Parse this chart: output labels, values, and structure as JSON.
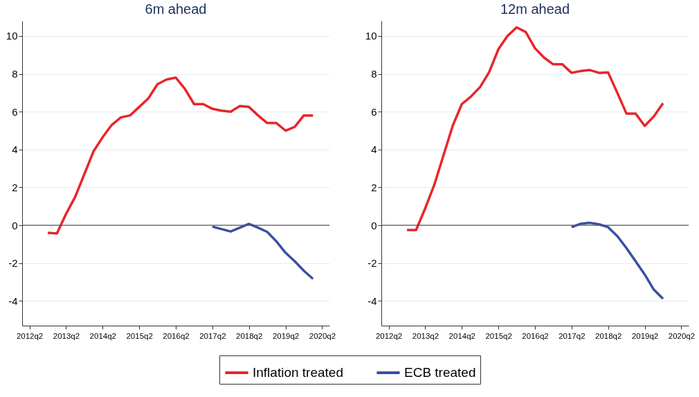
{
  "chart_data": [
    {
      "type": "line",
      "title": "6m ahead",
      "ylim": [
        -5.3,
        10.8
      ],
      "categories": [
        "2012q2",
        null,
        null,
        null,
        "2013q2",
        null,
        null,
        null,
        "2014q2",
        null,
        null,
        null,
        "2015q2",
        null,
        null,
        null,
        "2016q2",
        null,
        null,
        null,
        "2017q2",
        null,
        null,
        null,
        "2018q2",
        null,
        null,
        null,
        "2019q2",
        null,
        null,
        null,
        "2020q2"
      ],
      "yticks": [
        -4,
        -2,
        0,
        2,
        4,
        6,
        8,
        10
      ],
      "grid": "y",
      "legend": "bottom",
      "line_style": "solid",
      "ref_lines": [
        {
          "axis": "y",
          "value": 0,
          "color": "#555555"
        }
      ],
      "series": [
        {
          "name": "Inflation treated",
          "color": "#e8252a",
          "values": [
            null,
            null,
            -0.4,
            -0.43,
            0.6,
            1.5,
            2.7,
            3.9,
            4.65,
            5.3,
            5.7,
            5.8,
            6.25,
            6.7,
            7.45,
            7.7,
            7.8,
            7.2,
            6.4,
            6.4,
            6.15,
            6.05,
            6.0,
            6.3,
            6.25,
            5.8,
            5.4,
            5.4,
            5.0,
            5.2,
            5.8,
            5.8,
            null
          ]
        },
        {
          "name": "ECB treated",
          "color": "#3a4fa0",
          "values": [
            null,
            null,
            null,
            null,
            null,
            null,
            null,
            null,
            null,
            null,
            null,
            null,
            null,
            null,
            null,
            null,
            null,
            null,
            null,
            null,
            -0.07,
            -0.2,
            -0.33,
            -0.13,
            0.07,
            -0.13,
            -0.35,
            -0.85,
            -1.45,
            -1.9,
            -2.4,
            -2.83,
            null
          ]
        }
      ]
    },
    {
      "type": "line",
      "title": "12m ahead",
      "ylim": [
        -5.3,
        10.8
      ],
      "categories": [
        "2012q2",
        null,
        null,
        null,
        "2013q2",
        null,
        null,
        null,
        "2014q2",
        null,
        null,
        null,
        "2015q2",
        null,
        null,
        null,
        "2016q2",
        null,
        null,
        null,
        "2017q2",
        null,
        null,
        null,
        "2018q2",
        null,
        null,
        null,
        "2019q2",
        null,
        null,
        null,
        "2020q2"
      ],
      "yticks": [
        -4,
        -2,
        0,
        2,
        4,
        6,
        8,
        10
      ],
      "grid": "y",
      "legend": "bottom",
      "line_style": "solid",
      "ref_lines": [
        {
          "axis": "y",
          "value": 0,
          "color": "#555555"
        }
      ],
      "series": [
        {
          "name": "Inflation treated",
          "color": "#e8252a",
          "values": [
            null,
            null,
            -0.25,
            -0.25,
            0.9,
            2.15,
            3.7,
            5.25,
            6.4,
            6.8,
            7.3,
            8.1,
            9.3,
            10.0,
            10.45,
            10.2,
            9.35,
            8.85,
            8.5,
            8.5,
            8.05,
            8.15,
            8.2,
            8.05,
            8.07,
            7.0,
            5.9,
            5.9,
            5.25,
            5.75,
            6.45,
            null,
            null
          ]
        },
        {
          "name": "ECB treated",
          "color": "#3a4fa0",
          "values": [
            null,
            null,
            null,
            null,
            null,
            null,
            null,
            null,
            null,
            null,
            null,
            null,
            null,
            null,
            null,
            null,
            null,
            null,
            null,
            null,
            -0.1,
            0.08,
            0.13,
            0.05,
            -0.1,
            -0.57,
            -1.2,
            -1.9,
            -2.6,
            -3.4,
            -3.88,
            null,
            null
          ]
        }
      ]
    }
  ]
}
